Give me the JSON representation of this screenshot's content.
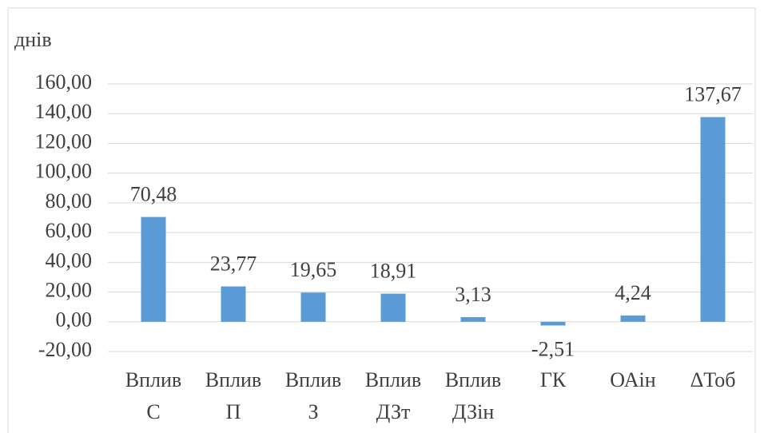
{
  "chart_data": {
    "type": "bar",
    "y_axis_label": "днів",
    "categories": [
      "Вплив С",
      "Вплив П",
      "Вплив З",
      "Вплив ДЗт",
      "Вплив ДЗін",
      "ГК",
      "ОАін",
      "ΔТоб"
    ],
    "values": [
      70.48,
      23.77,
      19.65,
      18.91,
      3.13,
      -2.51,
      4.24,
      137.67
    ],
    "value_labels": [
      "70,48",
      "23,77",
      "19,65",
      "18,91",
      "3,13",
      "-2,51",
      "4,24",
      "137,67"
    ],
    "color": "#5b9bd5",
    "ylim": [
      -20,
      160
    ],
    "yticks": [
      {
        "value": -20,
        "label": "-20,00"
      },
      {
        "value": 0,
        "label": "0,00"
      },
      {
        "value": 20,
        "label": "20,00"
      },
      {
        "value": 40,
        "label": "40,00"
      },
      {
        "value": 60,
        "label": "60,00"
      },
      {
        "value": 80,
        "label": "80,00"
      },
      {
        "value": 100,
        "label": "100,00"
      },
      {
        "value": 120,
        "label": "120,00"
      },
      {
        "value": 140,
        "label": "140,00"
      },
      {
        "value": 160,
        "label": "160,00"
      }
    ],
    "grid": true
  }
}
